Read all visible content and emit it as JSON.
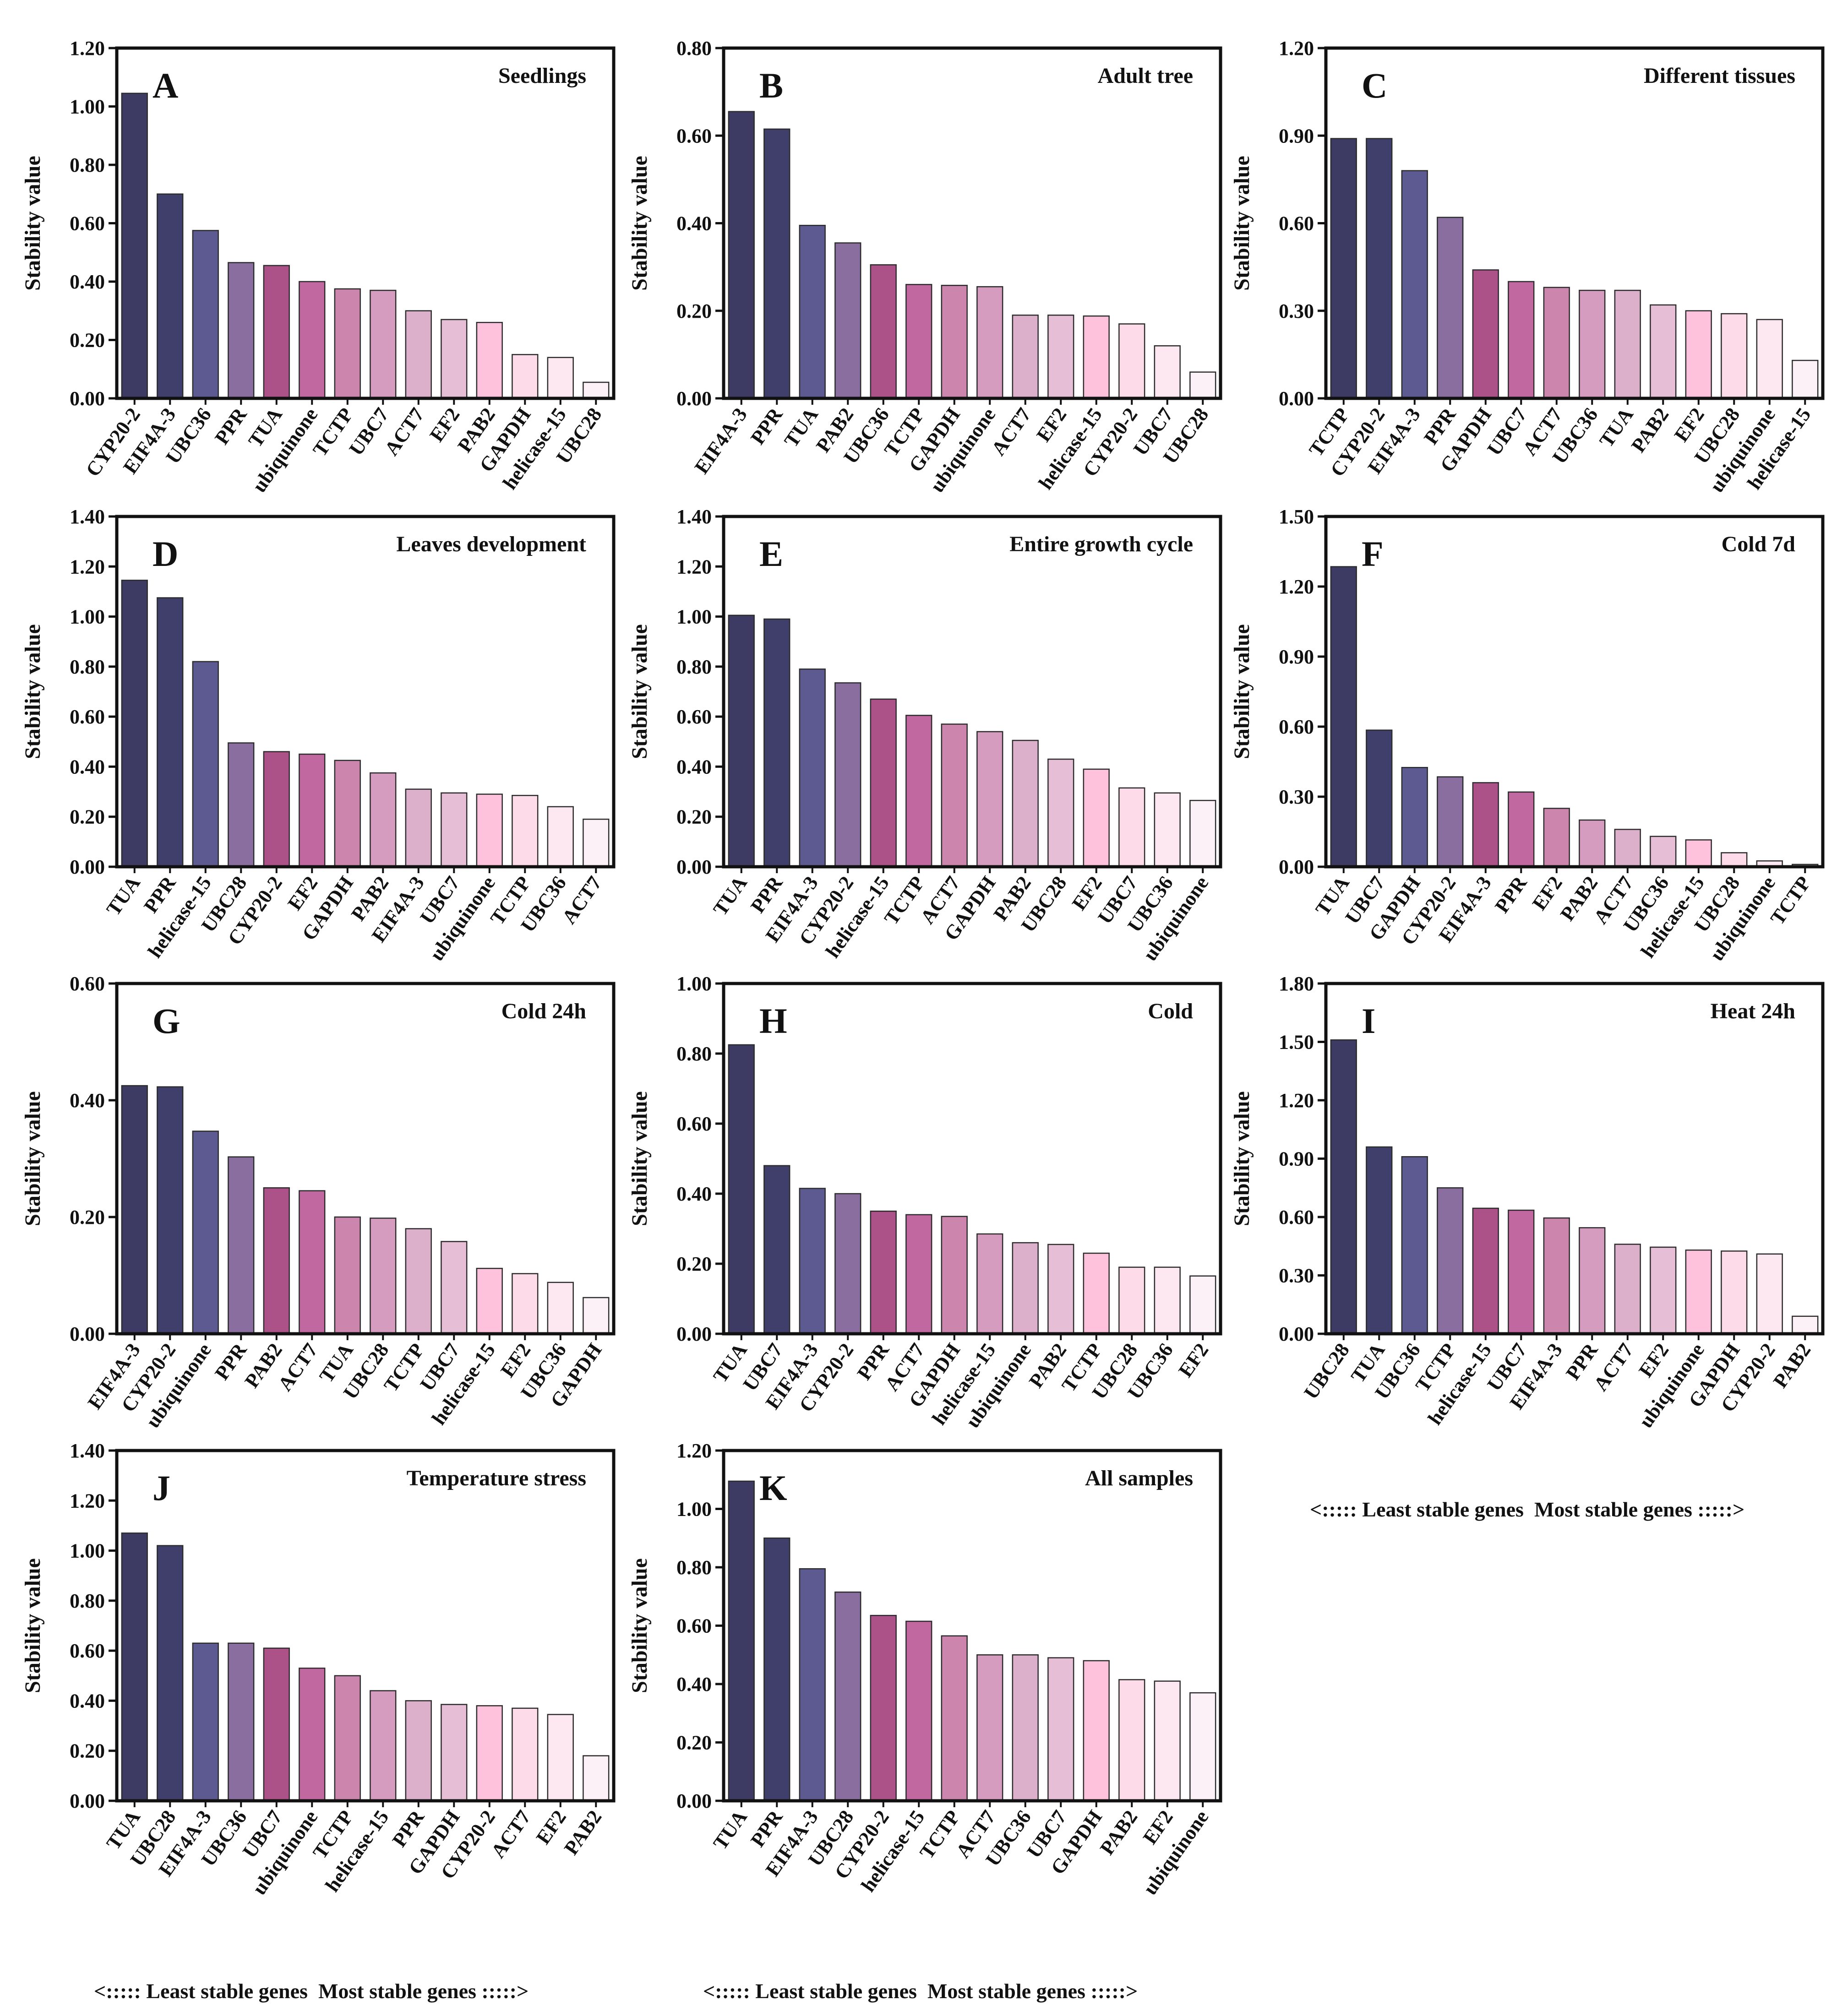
{
  "y_axis_label": "Stability value",
  "footer_caption": "<::::: Least stable genes  Most stable genes :::::>",
  "palette": [
    "#3d3b63",
    "#403f6b",
    "#5c5a91",
    "#8a6e9f",
    "#ad5288",
    "#c0689f",
    "#cc86ae",
    "#d69cbf",
    "#dcb0cb",
    "#e6bfd6",
    "#ffc2dc",
    "#fddbe9",
    "#fde8f1",
    "#fbf1f6"
  ],
  "chart_data": [
    {
      "letter": "A",
      "title": "Seedlings",
      "type": "bar",
      "ylim": [
        0,
        1.2
      ],
      "ticks": [
        0,
        0.2,
        0.4,
        0.6,
        0.8,
        1.0,
        1.2
      ],
      "decimals": 2,
      "categories": [
        "CYP20-2",
        "EIF4A-3",
        "UBC36",
        "PPR",
        "TUA",
        "ubiquinone",
        "TCTP",
        "UBC7",
        "ACT7",
        "EF2",
        "PAB2",
        "GAPDH",
        "helicase-15",
        "UBC28"
      ],
      "values": [
        1.045,
        0.7,
        0.575,
        0.465,
        0.455,
        0.4,
        0.375,
        0.37,
        0.3,
        0.27,
        0.26,
        0.15,
        0.14,
        0.055
      ]
    },
    {
      "letter": "B",
      "title": "Adult tree",
      "type": "bar",
      "ylim": [
        0,
        0.8
      ],
      "ticks": [
        0,
        0.2,
        0.4,
        0.6,
        0.8
      ],
      "decimals": 2,
      "categories": [
        "EIF4A-3",
        "PPR",
        "TUA",
        "PAB2",
        "UBC36",
        "TCTP",
        "GAPDH",
        "ubiquinone",
        "ACT7",
        "EF2",
        "helicase-15",
        "CYP20-2",
        "UBC7",
        "UBC28"
      ],
      "values": [
        0.655,
        0.615,
        0.395,
        0.355,
        0.305,
        0.26,
        0.258,
        0.255,
        0.19,
        0.19,
        0.188,
        0.17,
        0.12,
        0.06
      ]
    },
    {
      "letter": "C",
      "title": "Different tissues",
      "type": "bar",
      "ylim": [
        0,
        1.2
      ],
      "ticks": [
        0,
        0.3,
        0.6,
        0.9,
        1.2
      ],
      "decimals": 2,
      "categories": [
        "TCTP",
        "CYP20-2",
        "EIF4A-3",
        "PPR",
        "GAPDH",
        "UBC7",
        "ACT7",
        "UBC36",
        "TUA",
        "PAB2",
        "EF2",
        "UBC28",
        "ubiquinone",
        "helicase-15"
      ],
      "values": [
        0.89,
        0.89,
        0.78,
        0.62,
        0.44,
        0.4,
        0.38,
        0.37,
        0.37,
        0.32,
        0.3,
        0.29,
        0.27,
        0.13
      ]
    },
    {
      "letter": "D",
      "title": "Leaves development",
      "type": "bar",
      "ylim": [
        0,
        1.4
      ],
      "ticks": [
        0,
        0.2,
        0.4,
        0.6,
        0.8,
        1.0,
        1.2,
        1.4
      ],
      "decimals": 2,
      "categories": [
        "TUA",
        "PPR",
        "helicase-15",
        "UBC28",
        "CYP20-2",
        "EF2",
        "GAPDH",
        "PAB2",
        "EIF4A-3",
        "UBC7",
        "ubiquinone",
        "TCTP",
        "UBC36",
        "ACT7"
      ],
      "values": [
        1.145,
        1.075,
        0.82,
        0.495,
        0.46,
        0.45,
        0.425,
        0.375,
        0.31,
        0.295,
        0.29,
        0.285,
        0.24,
        0.19
      ]
    },
    {
      "letter": "E",
      "title": "Entire growth cycle",
      "type": "bar",
      "ylim": [
        0,
        1.4
      ],
      "ticks": [
        0,
        0.2,
        0.4,
        0.6,
        0.8,
        1.0,
        1.2,
        1.4
      ],
      "decimals": 2,
      "categories": [
        "TUA",
        "PPR",
        "EIF4A-3",
        "CYP20-2",
        "helicase-15",
        "TCTP",
        "ACT7",
        "GAPDH",
        "PAB2",
        "UBC28",
        "EF2",
        "UBC7",
        "UBC36",
        "ubiquinone"
      ],
      "values": [
        1.005,
        0.99,
        0.79,
        0.735,
        0.67,
        0.605,
        0.57,
        0.54,
        0.505,
        0.43,
        0.39,
        0.315,
        0.295,
        0.265
      ]
    },
    {
      "letter": "F",
      "title": "Cold 7d",
      "type": "bar",
      "ylim": [
        0,
        1.5
      ],
      "ticks": [
        0,
        0.3,
        0.6,
        0.9,
        1.2,
        1.5
      ],
      "decimals": 2,
      "categories": [
        "TUA",
        "UBC7",
        "GAPDH",
        "CYP20-2",
        "EIF4A-3",
        "PPR",
        "EF2",
        "PAB2",
        "ACT7",
        "UBC36",
        "helicase-15",
        "UBC28",
        "ubiquinone",
        "TCTP"
      ],
      "values": [
        1.285,
        0.585,
        0.425,
        0.385,
        0.36,
        0.32,
        0.25,
        0.2,
        0.16,
        0.13,
        0.115,
        0.06,
        0.025,
        0.01
      ]
    },
    {
      "letter": "G",
      "title": "Cold 24h",
      "type": "bar",
      "ylim": [
        0,
        0.6
      ],
      "ticks": [
        0,
        0.2,
        0.4,
        0.6
      ],
      "decimals": 2,
      "categories": [
        "EIF4A-3",
        "CYP20-2",
        "ubiquinone",
        "PPR",
        "PAB2",
        "ACT7",
        "TUA",
        "UBC28",
        "TCTP",
        "UBC7",
        "helicase-15",
        "EF2",
        "UBC36",
        "GAPDH"
      ],
      "values": [
        0.425,
        0.423,
        0.347,
        0.303,
        0.25,
        0.245,
        0.2,
        0.198,
        0.18,
        0.158,
        0.112,
        0.103,
        0.088,
        0.062
      ]
    },
    {
      "letter": "H",
      "title": "Cold",
      "type": "bar",
      "ylim": [
        0,
        1.0
      ],
      "ticks": [
        0,
        0.2,
        0.4,
        0.6,
        0.8,
        1.0
      ],
      "decimals": 2,
      "categories": [
        "TUA",
        "UBC7",
        "EIF4A-3",
        "CYP20-2",
        "PPR",
        "ACT7",
        "GAPDH",
        "helicase-15",
        "ubiquinone",
        "PAB2",
        "TCTP",
        "UBC28",
        "UBC36",
        "EF2"
      ],
      "values": [
        0.825,
        0.48,
        0.415,
        0.4,
        0.35,
        0.34,
        0.335,
        0.285,
        0.26,
        0.255,
        0.23,
        0.19,
        0.19,
        0.165
      ]
    },
    {
      "letter": "I",
      "title": "Heat 24h",
      "type": "bar",
      "ylim": [
        0,
        1.8
      ],
      "ticks": [
        0,
        0.3,
        0.6,
        0.9,
        1.2,
        1.5,
        1.8
      ],
      "decimals": 2,
      "categories": [
        "UBC28",
        "TUA",
        "UBC36",
        "TCTP",
        "helicase-15",
        "UBC7",
        "EIF4A-3",
        "PPR",
        "ACT7",
        "EF2",
        "ubiquinone",
        "GAPDH",
        "CYP20-2",
        "PAB2"
      ],
      "values": [
        1.51,
        0.96,
        0.91,
        0.75,
        0.645,
        0.635,
        0.595,
        0.545,
        0.46,
        0.445,
        0.43,
        0.425,
        0.41,
        0.09
      ]
    },
    {
      "letter": "J",
      "title": "Temperature stress",
      "type": "bar",
      "ylim": [
        0,
        1.4
      ],
      "ticks": [
        0,
        0.2,
        0.4,
        0.6,
        0.8,
        1.0,
        1.2,
        1.4
      ],
      "decimals": 2,
      "categories": [
        "TUA",
        "UBC28",
        "EIF4A-3",
        "UBC36",
        "UBC7",
        "ubiquinone",
        "TCTP",
        "helicase-15",
        "PPR",
        "GAPDH",
        "CYP20-2",
        "ACT7",
        "EF2",
        "PAB2"
      ],
      "values": [
        1.07,
        1.02,
        0.63,
        0.63,
        0.61,
        0.53,
        0.5,
        0.44,
        0.4,
        0.385,
        0.38,
        0.37,
        0.345,
        0.18
      ]
    },
    {
      "letter": "K",
      "title": "All samples",
      "type": "bar",
      "ylim": [
        0,
        1.2
      ],
      "ticks": [
        0,
        0.2,
        0.4,
        0.6,
        0.8,
        1.0,
        1.2
      ],
      "decimals": 2,
      "categories": [
        "TUA",
        "PPR",
        "EIF4A-3",
        "UBC28",
        "CYP20-2",
        "helicase-15",
        "TCTP",
        "ACT7",
        "UBC36",
        "UBC7",
        "GAPDH",
        "PAB2",
        "EF2",
        "ubiquinone"
      ],
      "values": [
        1.095,
        0.9,
        0.795,
        0.715,
        0.635,
        0.615,
        0.565,
        0.5,
        0.5,
        0.49,
        0.48,
        0.415,
        0.41,
        0.37
      ]
    }
  ]
}
